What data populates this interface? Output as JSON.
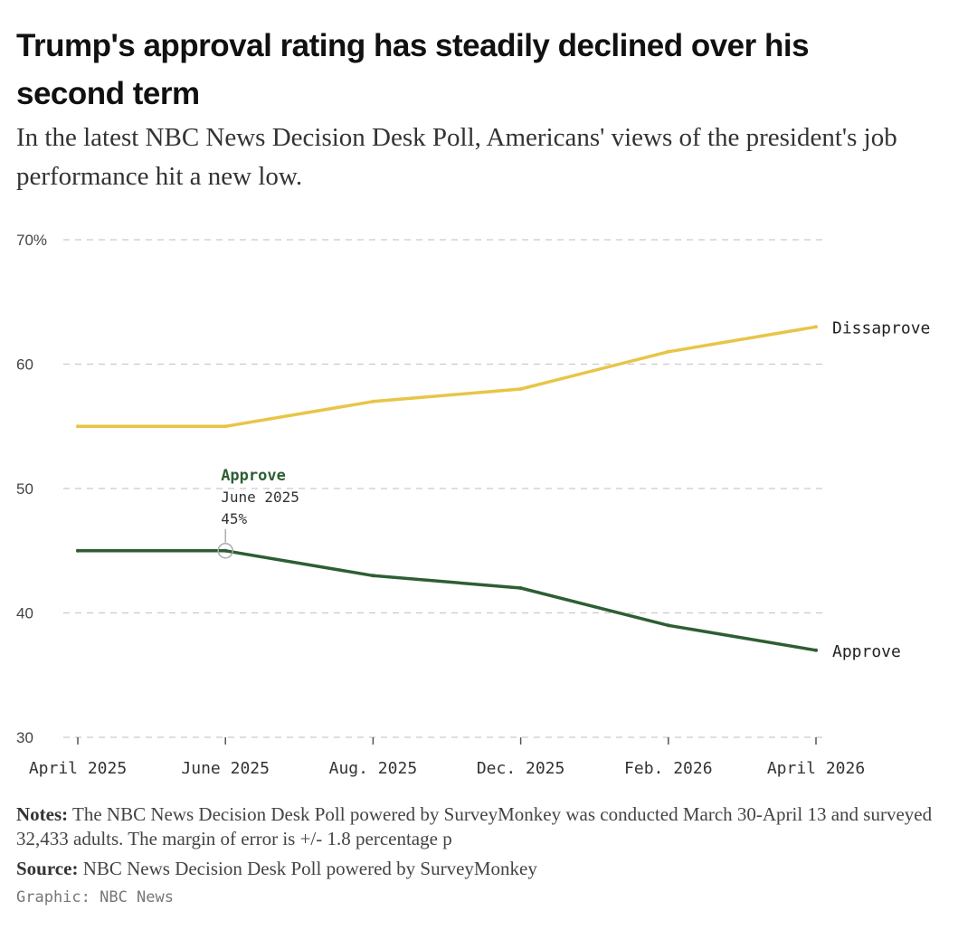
{
  "headline": "Trump's approval rating has steadily declined over his second term",
  "subhead": "In the latest NBC News Decision Desk Poll, Americans' views of the president's job performance hit a new low.",
  "chart_data": {
    "type": "line",
    "categories": [
      "April 2025",
      "June 2025",
      "Aug. 2025",
      "Dec. 2025",
      "Feb. 2026",
      "April 2026"
    ],
    "series": [
      {
        "name": "Dissaprove",
        "color": "#e8c547",
        "values": [
          55,
          55,
          57,
          58,
          61,
          63
        ]
      },
      {
        "name": "Approve",
        "color": "#2e5e34",
        "values": [
          45,
          45,
          43,
          42,
          39,
          37
        ]
      }
    ],
    "ylim": [
      30,
      70
    ],
    "yticks": [
      30,
      40,
      50,
      60,
      70
    ],
    "ytick_labels": [
      "30",
      "40",
      "50",
      "60",
      "70%"
    ],
    "grid": true,
    "annotation": {
      "series": "Approve",
      "index": 1,
      "title": "Approve",
      "date": "June 2025",
      "value": "45%"
    }
  },
  "notes": {
    "label": "Notes:",
    "text": "The NBC News Decision Desk Poll powered by SurveyMonkey was conducted March 30-April 13 and surveyed 32,433 adults. The margin of error is +/- 1.8 percentage p"
  },
  "source": {
    "label": "Source:",
    "text": "NBC News Decision Desk Poll powered by SurveyMonkey"
  },
  "credit": "Graphic: NBC News"
}
